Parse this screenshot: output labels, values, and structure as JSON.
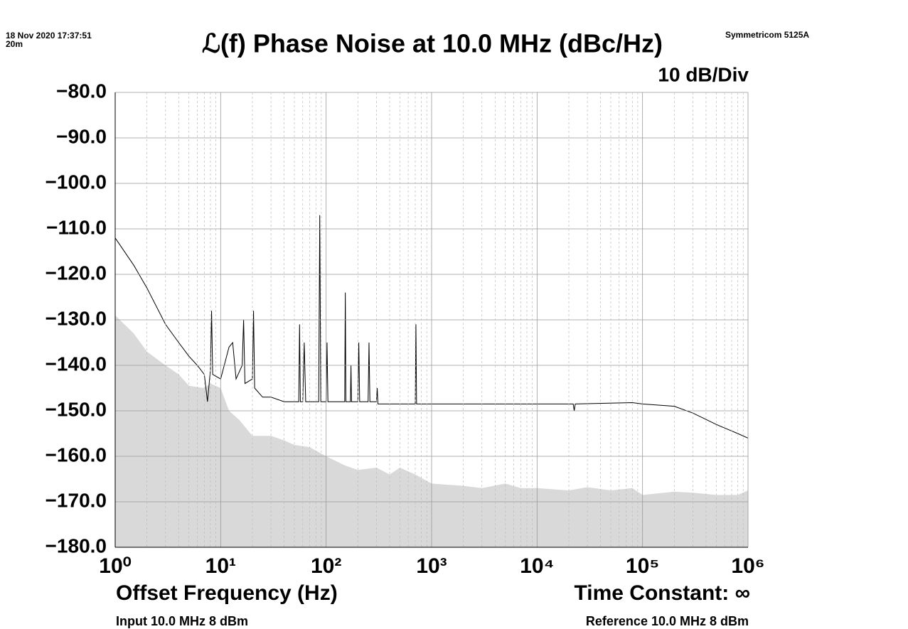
{
  "chart_data": {
    "type": "line",
    "title": "ℒ(f) Phase Noise at 10.0 MHz (dBc/Hz)",
    "timestamp": "18 Nov 2020 17:37:51",
    "duration": "20m",
    "instrument": "Symmetricom 5125A",
    "scale_label": "10 dB/Div",
    "xlabel": "Offset Frequency (Hz)",
    "time_constant": "Time Constant: ∞",
    "input_label": "Input 10.0 MHz 8 dBm",
    "reference_label": "Reference 10.0 MHz 8 dBm",
    "xscale": "log",
    "grid": true,
    "minor_grid": true,
    "xlim": [
      1,
      1000000
    ],
    "ylim": [
      -180,
      -80
    ],
    "xticks": [
      {
        "value": 1,
        "label": "10⁰"
      },
      {
        "value": 10,
        "label": "10¹"
      },
      {
        "value": 100,
        "label": "10²"
      },
      {
        "value": 1000,
        "label": "10³"
      },
      {
        "value": 10000,
        "label": "10⁴"
      },
      {
        "value": 100000,
        "label": "10⁵"
      },
      {
        "value": 1000000,
        "label": "10⁶"
      }
    ],
    "yticks": [
      {
        "value": -80,
        "label": "−80.0"
      },
      {
        "value": -90,
        "label": "−90.0"
      },
      {
        "value": -100,
        "label": "−100.0"
      },
      {
        "value": -110,
        "label": "−110.0"
      },
      {
        "value": -120,
        "label": "−120.0"
      },
      {
        "value": -130,
        "label": "−130.0"
      },
      {
        "value": -140,
        "label": "−140.0"
      },
      {
        "value": -150,
        "label": "−150.0"
      },
      {
        "value": -160,
        "label": "−160.0"
      },
      {
        "value": -170,
        "label": "−170.0"
      },
      {
        "value": -180,
        "label": "−180.0"
      }
    ],
    "series": [
      {
        "kind": "area",
        "color": "#d9d9d9",
        "x": [
          1,
          1.5,
          2,
          3,
          4,
          5,
          7,
          8,
          10,
          12,
          15,
          20,
          30,
          40,
          50,
          70,
          100,
          150,
          200,
          300,
          400,
          500,
          700,
          1000,
          2000,
          3000,
          5000,
          7000,
          10000,
          20000,
          30000,
          50000,
          80000,
          100000,
          200000,
          300000,
          500000,
          800000,
          1000000
        ],
        "values": [
          -129,
          -133,
          -137,
          -140,
          -142,
          -144.5,
          -145,
          -144,
          -145,
          -150,
          -152,
          -155.5,
          -155.5,
          -156.5,
          -157.5,
          -158,
          -160,
          -162,
          -163,
          -162.5,
          -164,
          -162.5,
          -164,
          -166,
          -166.5,
          -167,
          -166,
          -167,
          -167,
          -167.5,
          -166.8,
          -167.5,
          -167,
          -168.5,
          -167.8,
          -168,
          -168.5,
          -168.5,
          -167.5
        ]
      },
      {
        "kind": "line",
        "color": "#000000",
        "x": [
          1,
          1.5,
          2,
          3,
          4,
          5,
          6,
          7,
          7.5,
          8,
          8.2,
          8.4,
          10,
          12,
          13,
          14,
          16,
          16.5,
          17,
          20,
          20.5,
          21,
          25,
          30,
          40,
          50,
          55,
          56,
          57,
          60,
          62,
          64,
          85,
          87,
          89,
          100,
          102,
          104,
          150,
          152,
          154,
          170,
          172,
          174,
          200,
          204,
          208,
          250,
          255,
          260,
          300,
          305,
          310,
          700,
          710,
          720,
          1000,
          10000,
          22000,
          22500,
          23000,
          80000,
          100000,
          200000,
          300000,
          500000,
          800000,
          1000000
        ],
        "values": [
          -112,
          -118,
          -123,
          -131,
          -135,
          -138,
          -140,
          -142,
          -148,
          -141,
          -128,
          -142,
          -143,
          -136,
          -135,
          -143,
          -140,
          -130,
          -144,
          -143,
          -128,
          -145,
          -147,
          -147,
          -148,
          -148,
          -148,
          -131,
          -148,
          -148,
          -135,
          -148,
          -148,
          -107,
          -148,
          -148,
          -135,
          -148,
          -148,
          -124,
          -148,
          -148,
          -140,
          -148,
          -148,
          -135,
          -148,
          -148,
          -135,
          -148,
          -148,
          -145,
          -148.5,
          -148.5,
          -131,
          -148.5,
          -148.5,
          -148.5,
          -148.5,
          -150,
          -148.5,
          -148.2,
          -148.5,
          -149,
          -150.5,
          -153,
          -155,
          -156
        ]
      }
    ]
  }
}
